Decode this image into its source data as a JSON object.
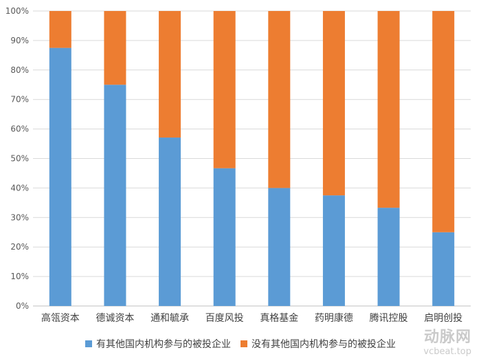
{
  "chart_data": {
    "type": "bar",
    "stacked": true,
    "percent": true,
    "categories": [
      "高瓴资本",
      "德诚资本",
      "通和毓承",
      "百度风投",
      "真格基金",
      "药明康德",
      "腾讯控股",
      "启明创投"
    ],
    "series": [
      {
        "name": "有其他国内机构参与的被投企业",
        "color": "#5b9bd5",
        "values": [
          87.5,
          75,
          57.1,
          46.7,
          40,
          37.5,
          33.3,
          25
        ]
      },
      {
        "name": "没有其他国内机构参与的被投企业",
        "color": "#ed7d31",
        "values": [
          12.5,
          25,
          42.9,
          53.3,
          60,
          62.5,
          66.7,
          75
        ]
      }
    ],
    "ylim": [
      0,
      100
    ],
    "yticks": [
      "0%",
      "10%",
      "20%",
      "30%",
      "40%",
      "50%",
      "60%",
      "70%",
      "80%",
      "90%",
      "100%"
    ],
    "grid": true,
    "legend_position": "bottom",
    "title": "",
    "xlabel": "",
    "ylabel": ""
  },
  "watermark": {
    "main": "动脉网",
    "sub": "vcbeat.top"
  }
}
